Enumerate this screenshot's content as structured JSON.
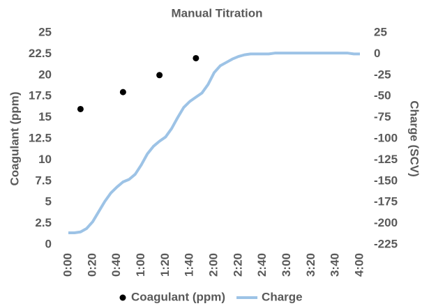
{
  "chart_data": {
    "type": "scatter-line",
    "title": "Manual Titration",
    "y_label": "Coagulant (ppm)",
    "y2_label": "Charge (SCV)",
    "xlim": [
      0,
      240
    ],
    "xticks": [
      {
        "value": 0,
        "label": "0:00"
      },
      {
        "value": 20,
        "label": "0:20"
      },
      {
        "value": 40,
        "label": "0:40"
      },
      {
        "value": 60,
        "label": "1:00"
      },
      {
        "value": 80,
        "label": "1:20"
      },
      {
        "value": 100,
        "label": "1:40"
      },
      {
        "value": 120,
        "label": "2:00"
      },
      {
        "value": 140,
        "label": "2:20"
      },
      {
        "value": 160,
        "label": "2:40"
      },
      {
        "value": 180,
        "label": "3:00"
      },
      {
        "value": 200,
        "label": "3:20"
      },
      {
        "value": 220,
        "label": "3:40"
      },
      {
        "value": 240,
        "label": "4:00"
      }
    ],
    "ylim": [
      0,
      25
    ],
    "yticks": [
      0,
      2.5,
      5,
      7.5,
      10,
      12.5,
      15,
      17.5,
      20,
      22.5,
      25
    ],
    "y2lim": [
      -225,
      25
    ],
    "y2ticks": [
      -225,
      -200,
      -175,
      -150,
      -125,
      -100,
      -75,
      -50,
      -25,
      0,
      25
    ],
    "legend": "bottom",
    "series": [
      {
        "name": "Coagulant (ppm)",
        "type": "scatter",
        "color": "#000000",
        "x": [
          10,
          45,
          75,
          105
        ],
        "values": [
          16,
          18,
          20,
          22
        ]
      },
      {
        "name": "Charge",
        "type": "line",
        "axis": "y2",
        "color": "#9dc3e6",
        "x": [
          0,
          5,
          10,
          15,
          20,
          25,
          30,
          35,
          40,
          45,
          50,
          55,
          60,
          65,
          70,
          75,
          80,
          85,
          90,
          95,
          100,
          105,
          110,
          115,
          120,
          125,
          130,
          135,
          140,
          145,
          150,
          155,
          160,
          165,
          170,
          175,
          180,
          185,
          190,
          195,
          200,
          205,
          210,
          215,
          220,
          225,
          230,
          235,
          240
        ],
        "values": [
          -211,
          -211,
          -210,
          -206,
          -198,
          -186,
          -174,
          -164,
          -157,
          -151,
          -148,
          -142,
          -131,
          -118,
          -109,
          -103,
          -98,
          -88,
          -75,
          -63,
          -56,
          -51,
          -46,
          -36,
          -22,
          -14,
          -10,
          -6,
          -3,
          -1,
          0,
          0,
          0,
          0,
          1,
          1,
          1,
          1,
          1,
          1,
          1,
          1,
          1,
          1,
          1,
          1,
          1,
          0,
          0
        ]
      }
    ]
  }
}
